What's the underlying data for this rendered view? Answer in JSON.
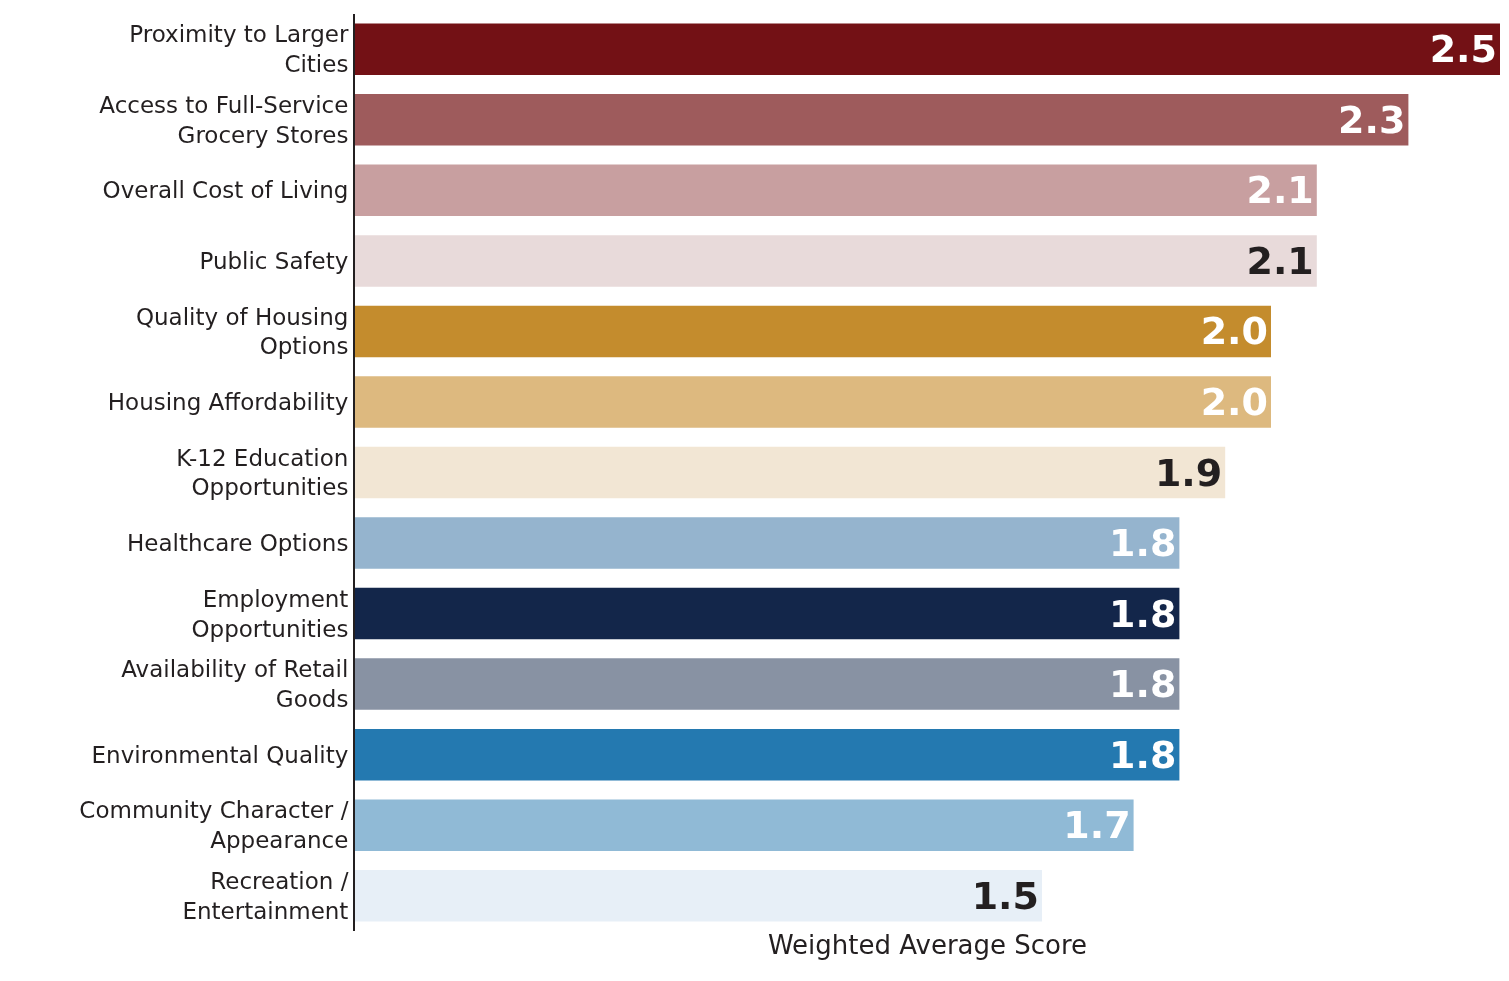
{
  "chart_data": {
    "type": "bar",
    "orientation": "horizontal",
    "xlabel": "Weighted Average Score",
    "categories": [
      "Proximity to Larger Cities",
      "Access to Full-Service Grocery Stores",
      "Overall Cost of Living",
      "Public Safety",
      "Quality of Housing Options",
      "Housing Affordability",
      "K-12 Education Opportunities",
      "Healthcare Options",
      "Employment Opportunities",
      "Availability of Retail Goods",
      "Environmental Quality",
      "Community Character / Appearance",
      "Recreation / Entertainment"
    ],
    "values": [
      2.5,
      2.3,
      2.1,
      2.1,
      2.0,
      2.0,
      1.9,
      1.8,
      1.8,
      1.8,
      1.8,
      1.7,
      1.5
    ],
    "colors": [
      "#731115",
      "#9e5b5c",
      "#c89fa0",
      "#e8dada",
      "#c48c2d",
      "#ddb97f",
      "#f2e6d4",
      "#95b4ce",
      "#13264a",
      "#8892a3",
      "#2479b0",
      "#90bad6",
      "#e7eff7"
    ],
    "value_labels": [
      "2.5",
      "2.3",
      "2.1",
      "2.1",
      "2.0",
      "2.0",
      "1.9",
      "1.8",
      "1.8",
      "1.8",
      "1.8",
      "1.7",
      "1.5"
    ],
    "xlim": [
      0,
      2.5
    ]
  }
}
